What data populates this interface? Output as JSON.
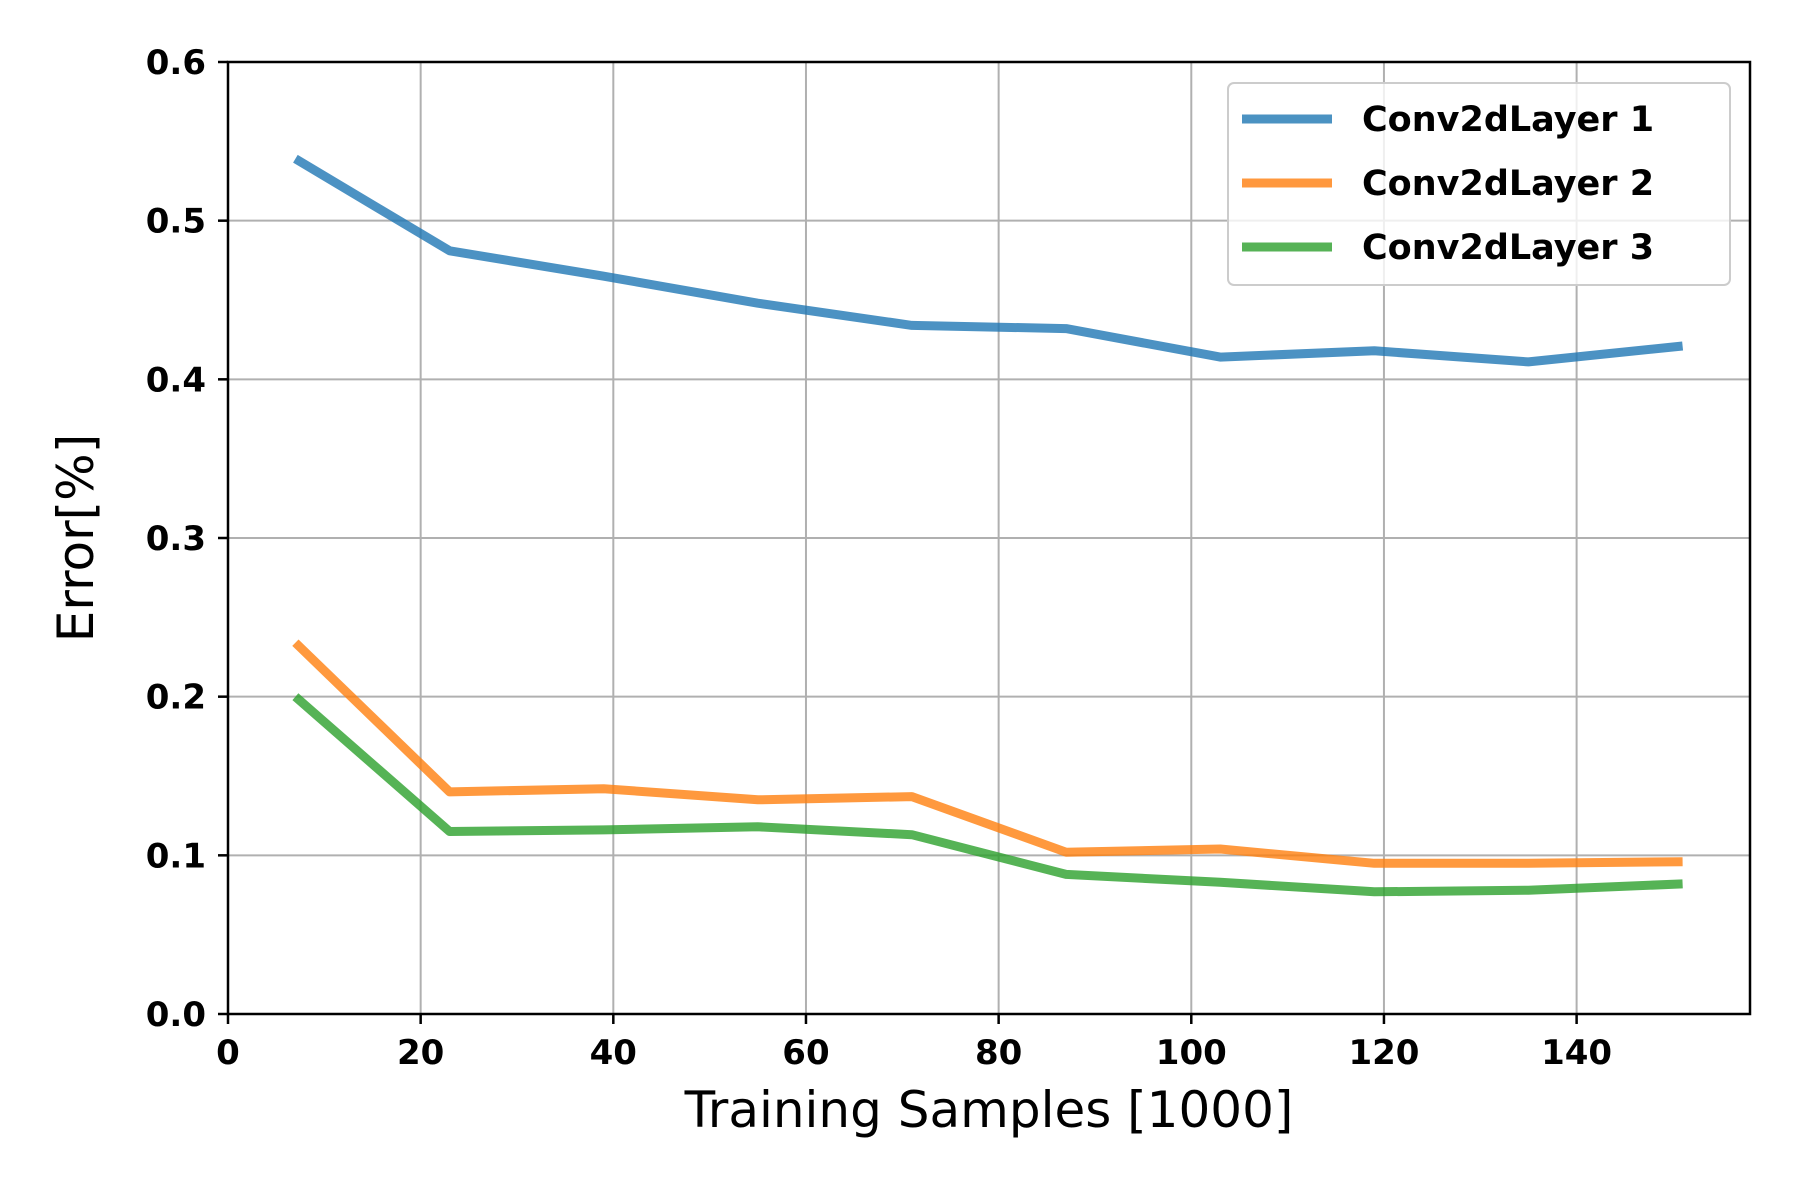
{
  "chart_data": {
    "type": "line",
    "xlabel": "Training Samples [1000]",
    "ylabel": "Error[%]",
    "xlim": [
      0,
      158
    ],
    "ylim": [
      0.0,
      0.6
    ],
    "xticks": [
      0,
      20,
      40,
      60,
      80,
      100,
      120,
      140
    ],
    "yticks": [
      0.0,
      0.1,
      0.2,
      0.3,
      0.4,
      0.5,
      0.6
    ],
    "xtick_labels": [
      "0",
      "20",
      "40",
      "60",
      "80",
      "100",
      "120",
      "140"
    ],
    "ytick_labels": [
      "0.0",
      "0.1",
      "0.2",
      "0.3",
      "0.4",
      "0.5",
      "0.6"
    ],
    "grid": true,
    "legend_position": "top-right",
    "x": [
      7,
      23,
      39,
      55,
      71,
      87,
      103,
      119,
      135,
      151
    ],
    "series": [
      {
        "name": "Conv2dLayer 1",
        "color": "#1f77b4",
        "values": [
          0.539,
          0.481,
          0.465,
          0.448,
          0.434,
          0.432,
          0.414,
          0.418,
          0.411,
          0.421
        ]
      },
      {
        "name": "Conv2dLayer 2",
        "color": "#ff7f0e",
        "values": [
          0.234,
          0.14,
          0.142,
          0.135,
          0.137,
          0.102,
          0.104,
          0.095,
          0.095,
          0.096
        ]
      },
      {
        "name": "Conv2dLayer 3",
        "color": "#2ca02c",
        "values": [
          0.2,
          0.115,
          0.116,
          0.118,
          0.113,
          0.088,
          0.083,
          0.077,
          0.078,
          0.082
        ]
      }
    ]
  }
}
